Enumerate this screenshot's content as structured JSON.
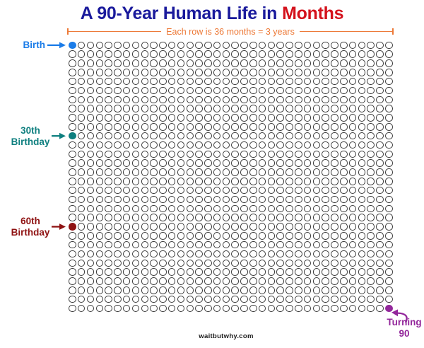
{
  "title": {
    "prefix": "A 90-Year Human Life in",
    "highlight": "Months",
    "prefix_color": "#1A1A9C",
    "highlight_color": "#D4121C"
  },
  "bracket": {
    "label": "Each row is 36 months = 3 years",
    "color": "#ED7A38"
  },
  "annotations": {
    "birth": {
      "label": "Birth",
      "color": "#1B7CE8"
    },
    "thirty": {
      "line1": "30th",
      "line2": "Birthday",
      "color": "#0E7F7F"
    },
    "sixty": {
      "line1": "60th",
      "line2": "Birthday",
      "color": "#8F1212"
    },
    "ninety": {
      "line1": "Turning",
      "line2": "90",
      "color": "#93279B"
    }
  },
  "footer": {
    "text": "waitbutwhy.com"
  },
  "chart_data": {
    "type": "heatmap",
    "subtype": "waffle-unit-chart",
    "title": "A 90-Year Human Life in Months",
    "unit": "1 circle = 1 month",
    "rows": 30,
    "cols": 36,
    "total_units": 1080,
    "row_meaning": "Each row is 36 months = 3 years",
    "default_cell": {
      "fill": "#FFFFFF",
      "outline": "#3B3B3B"
    },
    "legend_position": "none",
    "grid": "off",
    "markers": [
      {
        "label": "Birth",
        "month_index": 0,
        "row": 0,
        "col": 0,
        "color": "#1B7CE8"
      },
      {
        "label": "30th Birthday",
        "month_index": 360,
        "row": 10,
        "col": 0,
        "color": "#0E7F7F"
      },
      {
        "label": "60th Birthday",
        "month_index": 720,
        "row": 20,
        "col": 0,
        "color": "#8F1212"
      },
      {
        "label": "Turning 90",
        "month_index": 1079,
        "row": 29,
        "col": 35,
        "color": "#93279B"
      }
    ]
  }
}
